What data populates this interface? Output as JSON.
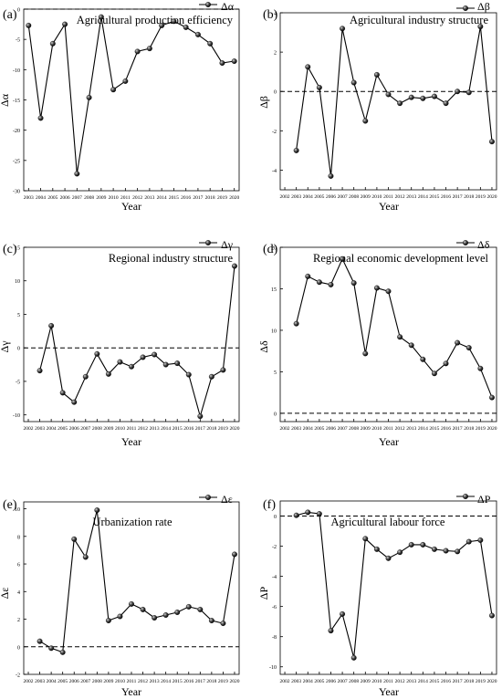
{
  "chart_data": [
    {
      "type": "line",
      "panel_label": "(a)",
      "title": "Agricultural production efficiency",
      "legend": "Δα",
      "ylabel": "Δα",
      "xlabel": "Year",
      "x": [
        "2003",
        "2004",
        "2005",
        "2006",
        "2007",
        "2008",
        "2009",
        "2010",
        "2011",
        "2012",
        "2013",
        "2014",
        "2015",
        "2016",
        "2017",
        "2018",
        "2019",
        "2020"
      ],
      "y": [
        -2.7,
        -18.0,
        -5.7,
        -2.5,
        -27.2,
        -14.6,
        -1.3,
        -13.3,
        -11.9,
        -7.0,
        -6.5,
        -2.7,
        -2.0,
        -3.0,
        -4.2,
        -5.7,
        -8.9,
        -8.6
      ],
      "xticks": [
        "2003",
        "2004",
        "2005",
        "2006",
        "2007",
        "2008",
        "2009",
        "2010",
        "2011",
        "2012",
        "2013",
        "2014",
        "2015",
        "2016",
        "2017",
        "2018",
        "2019",
        "2020"
      ],
      "yticks": [
        0,
        -5,
        -10,
        -15,
        -20,
        -25,
        -30
      ],
      "ylim": [
        -30,
        0
      ],
      "baseline": 0,
      "legend_position": "top-right",
      "color": "#000000"
    },
    {
      "type": "line",
      "panel_label": "(b)",
      "title": "Agricultural industry structure",
      "legend": "Δβ",
      "ylabel": "Δβ",
      "xlabel": "Year",
      "x": [
        "2003",
        "2004",
        "2005",
        "2006",
        "2007",
        "2008",
        "2009",
        "2010",
        "2011",
        "2012",
        "2013",
        "2014",
        "2015",
        "2016",
        "2017",
        "2018",
        "2019",
        "2020"
      ],
      "y": [
        -3.0,
        1.25,
        0.2,
        -4.3,
        3.2,
        0.45,
        -1.5,
        0.85,
        -0.15,
        -0.6,
        -0.3,
        -0.35,
        -0.25,
        -0.6,
        0.0,
        -0.05,
        3.3,
        -2.55
      ],
      "xticks": [
        "2002",
        "2003",
        "2004",
        "2005",
        "2006",
        "2007",
        "2008",
        "2009",
        "2010",
        "2011",
        "2012",
        "2013",
        "2014",
        "2015",
        "2016",
        "2017",
        "2018",
        "2019",
        "2020"
      ],
      "yticks": [
        4,
        2,
        0,
        -2,
        -4
      ],
      "ylim": [
        -5,
        4
      ],
      "baseline": 0,
      "legend_position": "top-right",
      "color": "#000000"
    },
    {
      "type": "line",
      "panel_label": "(c)",
      "title": "Regional industry structure",
      "legend": "Δγ",
      "ylabel": "Δγ",
      "xlabel": "Year",
      "x": [
        "2003",
        "2004",
        "2005",
        "2006",
        "2007",
        "2008",
        "2009",
        "2010",
        "2011",
        "2012",
        "2013",
        "2014",
        "2015",
        "2016",
        "2017",
        "2018",
        "2019",
        "2020"
      ],
      "y": [
        -3.4,
        3.3,
        -6.7,
        -8.1,
        -4.3,
        -0.9,
        -3.9,
        -2.1,
        -2.8,
        -1.4,
        -1.0,
        -2.5,
        -2.3,
        -4.0,
        -10.2,
        -4.3,
        -3.3,
        12.2
      ],
      "xticks": [
        "2002",
        "2003",
        "2004",
        "2005",
        "2006",
        "2007",
        "2008",
        "2009",
        "2010",
        "2011",
        "2012",
        "2013",
        "2014",
        "2015",
        "2016",
        "2017",
        "2018",
        "2019",
        "2020"
      ],
      "yticks": [
        15,
        10,
        5,
        0,
        -5,
        -10
      ],
      "ylim": [
        -11,
        15
      ],
      "baseline": 0,
      "legend_position": "top-right",
      "color": "#000000"
    },
    {
      "type": "line",
      "panel_label": "(d)",
      "title": "Regional economic development level",
      "legend": "Δδ",
      "ylabel": "Δδ",
      "xlabel": "Year",
      "x": [
        "2003",
        "2004",
        "2005",
        "2006",
        "2007",
        "2008",
        "2009",
        "2010",
        "2011",
        "2012",
        "2013",
        "2014",
        "2015",
        "2016",
        "2017",
        "2018",
        "2019",
        "2020"
      ],
      "y": [
        10.8,
        16.5,
        15.8,
        15.5,
        18.6,
        15.7,
        7.2,
        15.1,
        14.7,
        9.2,
        8.2,
        6.5,
        4.8,
        6.0,
        8.5,
        7.9,
        5.4,
        1.9
      ],
      "xticks": [
        "2002",
        "2003",
        "2004",
        "2005",
        "2006",
        "2007",
        "2008",
        "2009",
        "2010",
        "2011",
        "2012",
        "2013",
        "2014",
        "2015",
        "2016",
        "2017",
        "2018",
        "2019",
        "2020"
      ],
      "yticks": [
        20,
        15,
        10,
        5,
        0
      ],
      "ylim": [
        -1,
        20
      ],
      "baseline": 0,
      "legend_position": "top-right",
      "color": "#000000"
    },
    {
      "type": "line",
      "panel_label": "(e)",
      "title": "Urbanization rate",
      "legend": "Δε",
      "ylabel": "Δε",
      "xlabel": "Year",
      "x": [
        "2003",
        "2004",
        "2005",
        "2006",
        "2007",
        "2008",
        "2009",
        "2010",
        "2011",
        "2012",
        "2013",
        "2014",
        "2015",
        "2016",
        "2017",
        "2018",
        "2019",
        "2020"
      ],
      "y": [
        0.4,
        -0.1,
        -0.4,
        7.8,
        6.5,
        9.9,
        1.9,
        2.2,
        3.1,
        2.7,
        2.1,
        2.3,
        2.5,
        2.9,
        2.7,
        1.9,
        1.7,
        6.7
      ],
      "xticks": [
        "2002",
        "2003",
        "2004",
        "2005",
        "2006",
        "2007",
        "2008",
        "2009",
        "2010",
        "2011",
        "2012",
        "2013",
        "2014",
        "2015",
        "2016",
        "2017",
        "2018",
        "2019",
        "2020"
      ],
      "yticks": [
        10,
        8,
        6,
        4,
        2,
        0,
        -2
      ],
      "ylim": [
        -2,
        10.5
      ],
      "baseline": 0,
      "legend_position": "top-right",
      "color": "#000000"
    },
    {
      "type": "line",
      "panel_label": "(f)",
      "title": "Agricultural labour force",
      "legend": "ΔP",
      "ylabel": "ΔP",
      "xlabel": "Year",
      "x": [
        "2003",
        "2004",
        "2005",
        "2006",
        "2007",
        "2008",
        "2009",
        "2010",
        "2011",
        "2012",
        "2013",
        "2014",
        "2015",
        "2016",
        "2017",
        "2018",
        "2019",
        "2020"
      ],
      "y": [
        0.05,
        0.25,
        0.15,
        -7.6,
        -6.5,
        -9.4,
        -1.5,
        -2.2,
        -2.8,
        -2.4,
        -1.9,
        -1.9,
        -2.2,
        -2.3,
        -2.35,
        -1.7,
        -1.6,
        -6.6
      ],
      "xticks": [
        "2002",
        "2003",
        "2004",
        "2005",
        "2006",
        "2007",
        "2008",
        "2009",
        "2010",
        "2011",
        "2012",
        "2013",
        "2014",
        "2015",
        "2016",
        "2017",
        "2018",
        "2019",
        "2020"
      ],
      "yticks": [
        0,
        -2,
        -4,
        -6,
        -8,
        -10
      ],
      "ylim": [
        -10.5,
        1
      ],
      "baseline": 0,
      "legend_position": "top-right",
      "color": "#000000"
    }
  ]
}
